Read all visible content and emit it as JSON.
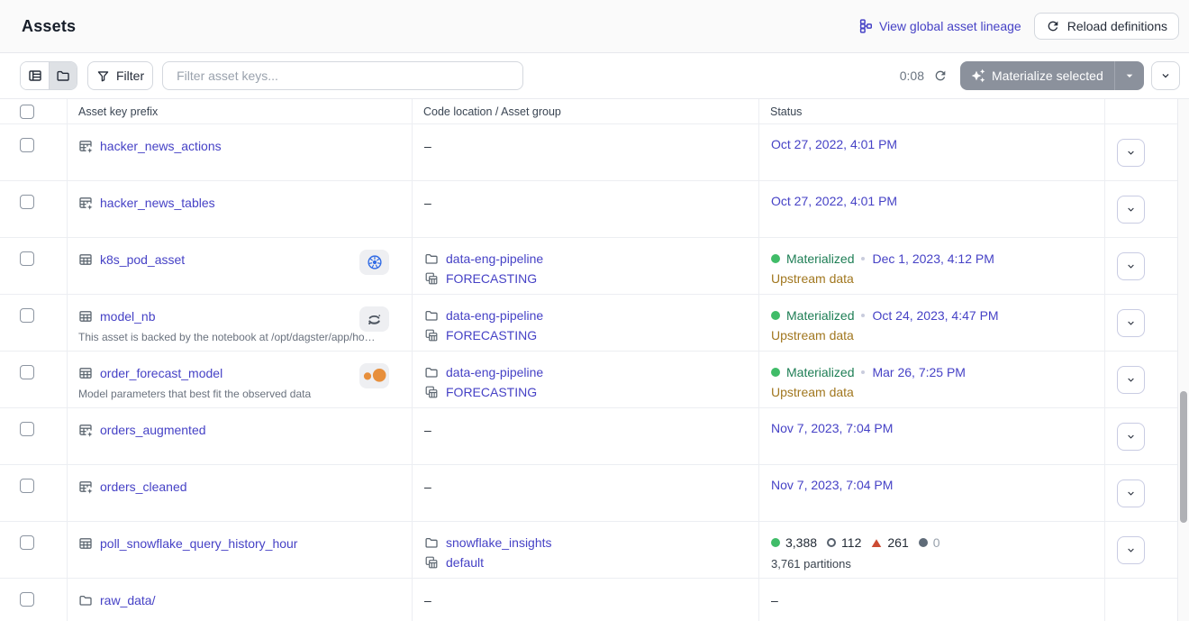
{
  "page": {
    "title": "Assets"
  },
  "header": {
    "lineage_link": "View global asset lineage",
    "reload_button": "Reload definitions"
  },
  "toolbar": {
    "view_toggle": {
      "list_selected": false,
      "folder_selected": true
    },
    "filter_button": "Filter",
    "search_placeholder": "Filter asset keys...",
    "refresh_timer": "0:08",
    "materialize_button": "Materialize selected"
  },
  "table": {
    "columns": {
      "asset_key": "Asset key prefix",
      "location": "Code location / Asset group",
      "status": "Status"
    },
    "rows": [
      {
        "name": "hacker_news_actions",
        "icon": "table-plus",
        "badge": null,
        "description": null,
        "location": null,
        "status": {
          "type": "timestamp",
          "timestamp": "Oct 27, 2022, 4:01 PM"
        },
        "menu": true
      },
      {
        "name": "hacker_news_tables",
        "icon": "table-plus",
        "badge": null,
        "description": null,
        "location": null,
        "status": {
          "type": "timestamp",
          "timestamp": "Oct 27, 2022, 4:01 PM"
        },
        "menu": true
      },
      {
        "name": "k8s_pod_asset",
        "icon": "table",
        "badge": "kubernetes",
        "description": null,
        "location": {
          "code_location": "data-eng-pipeline",
          "group": "FORECASTING"
        },
        "status": {
          "type": "materialized",
          "label": "Materialized",
          "timestamp": "Dec 1, 2023, 4:12 PM",
          "note": "Upstream data"
        },
        "menu": true
      },
      {
        "name": "model_nb",
        "icon": "table",
        "badge": "jupyter",
        "description": "This asset is backed by the notebook at /opt/dagster/app/ho…",
        "location": {
          "code_location": "data-eng-pipeline",
          "group": "FORECASTING"
        },
        "status": {
          "type": "materialized",
          "label": "Materialized",
          "timestamp": "Oct 24, 2023, 4:47 PM",
          "note": "Upstream data"
        },
        "menu": true
      },
      {
        "name": "order_forecast_model",
        "icon": "table",
        "badge": "noteable",
        "description": "Model parameters that best fit the observed data",
        "location": {
          "code_location": "data-eng-pipeline",
          "group": "FORECASTING"
        },
        "status": {
          "type": "materialized",
          "label": "Materialized",
          "timestamp": "Mar 26, 7:25 PM",
          "note": "Upstream data"
        },
        "menu": true
      },
      {
        "name": "orders_augmented",
        "icon": "table-plus",
        "badge": null,
        "description": null,
        "location": null,
        "status": {
          "type": "timestamp",
          "timestamp": "Nov 7, 2023, 7:04 PM"
        },
        "menu": true
      },
      {
        "name": "orders_cleaned",
        "icon": "table-plus",
        "badge": null,
        "description": null,
        "location": null,
        "status": {
          "type": "timestamp",
          "timestamp": "Nov 7, 2023, 7:04 PM"
        },
        "menu": true
      },
      {
        "name": "poll_snowflake_query_history_hour",
        "icon": "table",
        "badge": null,
        "description": null,
        "location": {
          "code_location": "snowflake_insights",
          "group": "default"
        },
        "status": {
          "type": "partitions",
          "counts": [
            {
              "kind": "materialized",
              "value": "3,388"
            },
            {
              "kind": "missing",
              "value": "112"
            },
            {
              "kind": "failed",
              "value": "261"
            },
            {
              "kind": "none",
              "value": "0"
            }
          ],
          "summary": "3,761 partitions"
        },
        "menu": true
      },
      {
        "name": "raw_data/",
        "icon": "folder",
        "badge": null,
        "description": null,
        "location": null,
        "status": {
          "type": "dash"
        },
        "menu": false
      }
    ]
  },
  "colors": {
    "link": "#4642C6",
    "green_dot": "#40BC68",
    "green_text": "#1E7E55",
    "amber_text": "#A1771F",
    "failed_triangle": "#CC4B33",
    "kubernetes_blue": "#326CE5",
    "noteable_orange": "#E78F3C",
    "materialize_button_bg": "#8B919C"
  }
}
